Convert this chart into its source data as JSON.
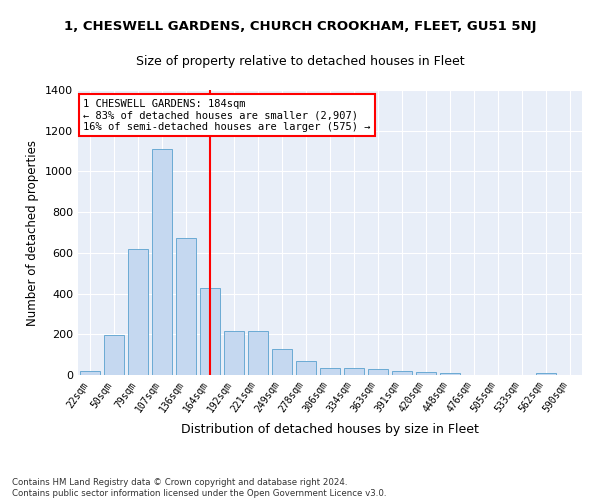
{
  "title": "1, CHESWELL GARDENS, CHURCH CROOKHAM, FLEET, GU51 5NJ",
  "subtitle": "Size of property relative to detached houses in Fleet",
  "xlabel": "Distribution of detached houses by size in Fleet",
  "ylabel": "Number of detached properties",
  "bar_color": "#c5d8f0",
  "bar_edge_color": "#6aaad4",
  "background_color": "#e8eef8",
  "grid_color": "white",
  "vline_x": 5,
  "vline_color": "red",
  "annotation_text": "1 CHESWELL GARDENS: 184sqm\n← 83% of detached houses are smaller (2,907)\n16% of semi-detached houses are larger (575) →",
  "annotation_box_color": "white",
  "annotation_box_edge": "red",
  "footer": "Contains HM Land Registry data © Crown copyright and database right 2024.\nContains public sector information licensed under the Open Government Licence v3.0.",
  "bin_labels": [
    "22sqm",
    "50sqm",
    "79sqm",
    "107sqm",
    "136sqm",
    "164sqm",
    "192sqm",
    "221sqm",
    "249sqm",
    "278sqm",
    "306sqm",
    "334sqm",
    "363sqm",
    "391sqm",
    "420sqm",
    "448sqm",
    "476sqm",
    "505sqm",
    "533sqm",
    "562sqm",
    "590sqm"
  ],
  "values": [
    20,
    195,
    620,
    1110,
    675,
    425,
    215,
    215,
    130,
    70,
    35,
    35,
    30,
    20,
    15,
    12,
    0,
    0,
    0,
    12,
    0
  ],
  "ylim": [
    0,
    1400
  ],
  "yticks": [
    0,
    200,
    400,
    600,
    800,
    1000,
    1200,
    1400
  ]
}
